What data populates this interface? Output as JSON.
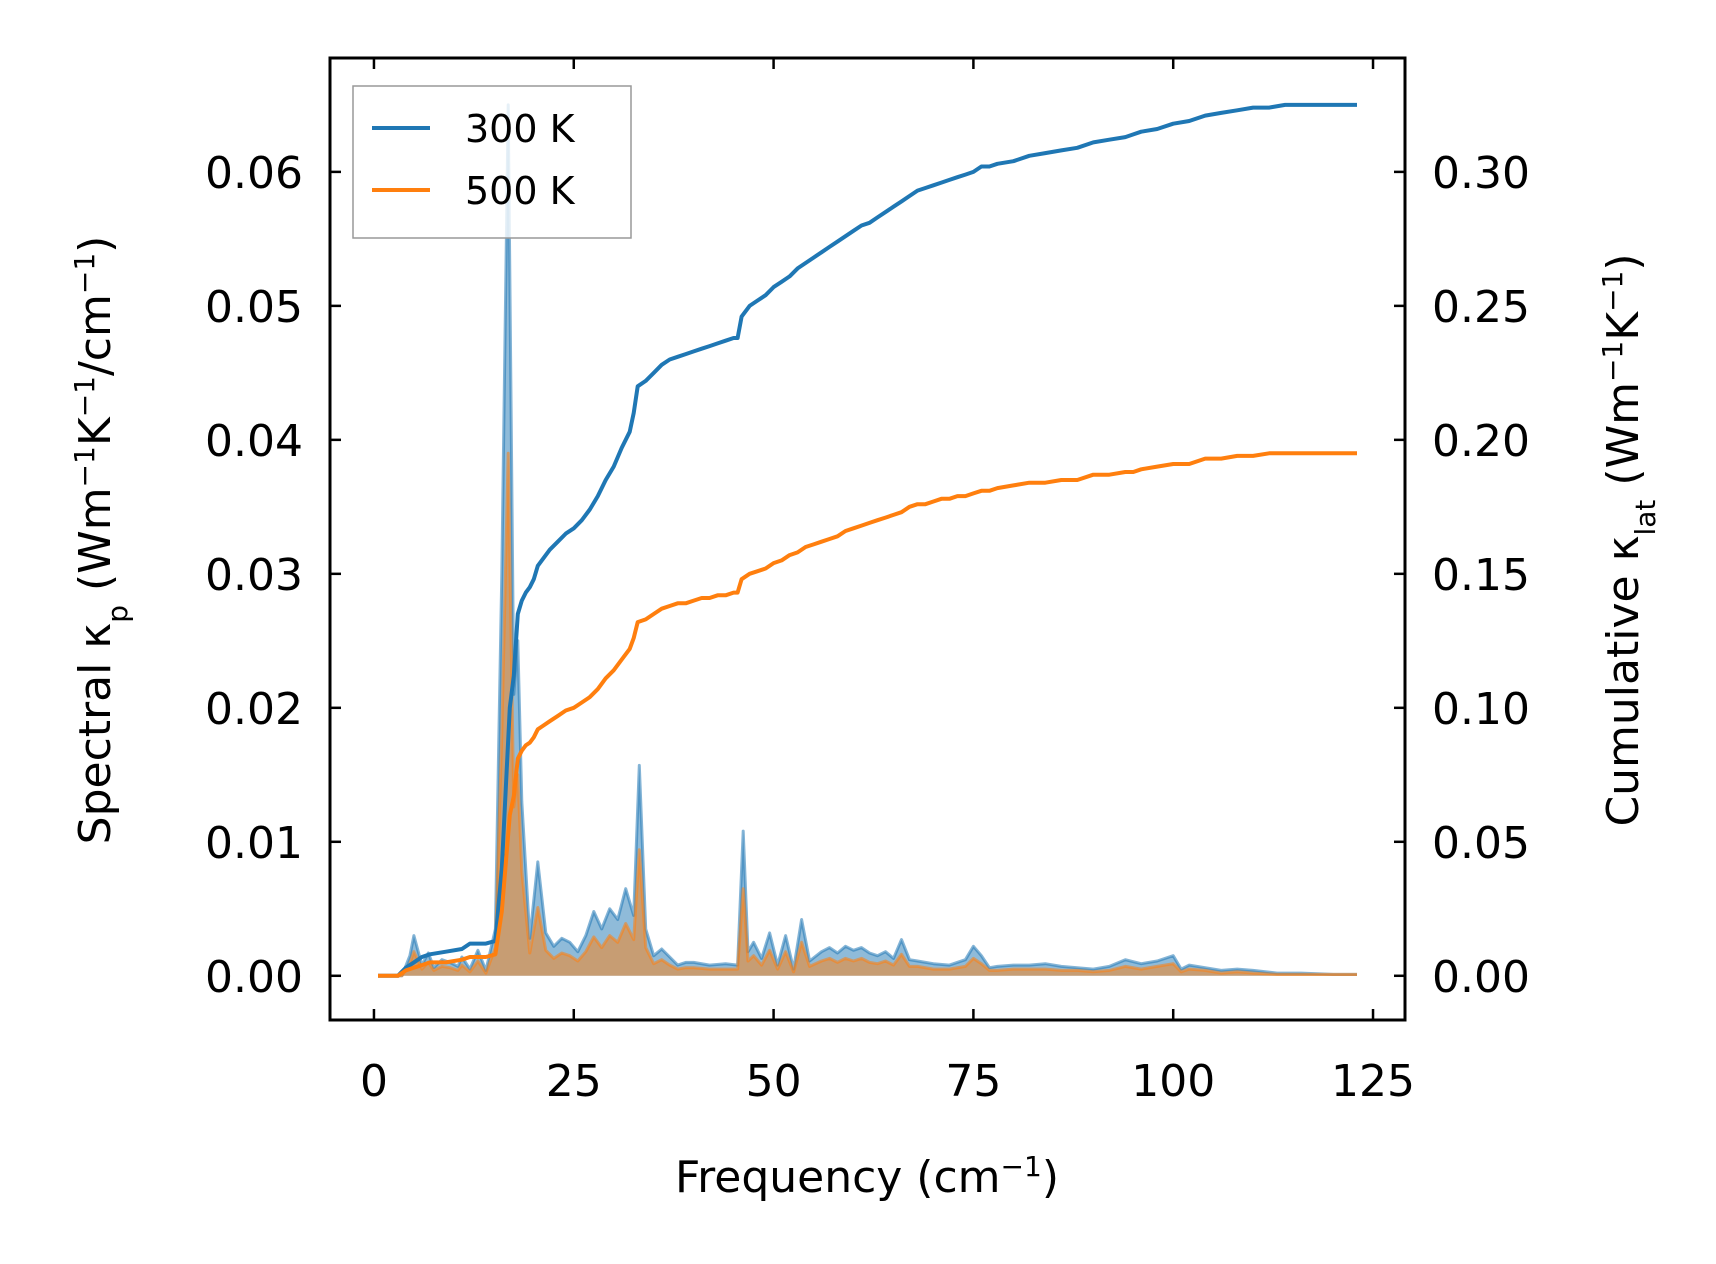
{
  "chart_data": {
    "type": "line",
    "title": "",
    "xlabel": "Frequency (cm",
    "xlabel_sup": "−1",
    "xlabel_end": ")",
    "ylabel_left": {
      "prefix": "Spectral κ",
      "sub": "p",
      "mid1": " (Wm",
      "sup1": "−1",
      "mid2": "K",
      "sup2": "−1",
      "mid3": "/cm",
      "sup3": "−1",
      "end": ")"
    },
    "ylabel_right": {
      "prefix": "Cumulative κ",
      "sub": "lat",
      "mid1": " (Wm",
      "sup1": "−1",
      "mid2": "K",
      "sup2": "−1",
      "end": ")"
    },
    "xlim": [
      -5.5,
      129
    ],
    "xticks": [
      0,
      25,
      50,
      75,
      100,
      125
    ],
    "xtick_labels": [
      "0",
      "25",
      "50",
      "75",
      "100",
      "125"
    ],
    "ylim_left": [
      -0.0033,
      0.0685
    ],
    "yticks_left": [
      0.0,
      0.01,
      0.02,
      0.03,
      0.04,
      0.05,
      0.06
    ],
    "ytick_labels_left": [
      "0.00",
      "0.01",
      "0.02",
      "0.03",
      "0.04",
      "0.05",
      "0.06"
    ],
    "ylim_right": [
      -0.0165,
      0.3425
    ],
    "yticks_right": [
      0.0,
      0.05,
      0.1,
      0.15,
      0.2,
      0.25,
      0.3
    ],
    "ytick_labels_right": [
      "0.00",
      "0.05",
      "0.10",
      "0.15",
      "0.20",
      "0.25",
      "0.30"
    ],
    "legend": {
      "position": "upper-left",
      "entries": [
        {
          "name": "300 K",
          "color": "#1f77b4"
        },
        {
          "name": "500 K",
          "color": "#ff7f0e"
        }
      ]
    },
    "spectral_series": [
      {
        "name": "300 K",
        "color": "#1f77b4",
        "axis": "left",
        "x": [
          0.5,
          2.5,
          3.5,
          4.5,
          5,
          6,
          6.8,
          7.5,
          8.5,
          9.5,
          10.5,
          11,
          12,
          13,
          14,
          15.2,
          16,
          16.8,
          17.5,
          18,
          18.5,
          19.5,
          20.5,
          21.5,
          22.5,
          23.5,
          24.5,
          25.5,
          26.5,
          27.5,
          28.5,
          29.5,
          30.5,
          31.5,
          32.5,
          33.2,
          34,
          35,
          36,
          37,
          38,
          39,
          40,
          42,
          44,
          45.5,
          46.2,
          46.8,
          47.5,
          48.5,
          49.5,
          50.5,
          51.5,
          52.5,
          53.5,
          54.5,
          56,
          57,
          58,
          59,
          60,
          61,
          62,
          63,
          64,
          65,
          66,
          67,
          68,
          70,
          72,
          74,
          75,
          76,
          77,
          78,
          80,
          82,
          84,
          86,
          88,
          90,
          92,
          94,
          96,
          98,
          100,
          101,
          102,
          104,
          106,
          108,
          110,
          113,
          116,
          120,
          123
        ],
        "y": [
          0.0,
          0.0,
          0.0,
          0.0015,
          0.003,
          0.0008,
          0.0017,
          0.0006,
          0.0012,
          0.001,
          0.0007,
          0.0014,
          0.0005,
          0.0019,
          0.0004,
          0.0035,
          0.03,
          0.065,
          0.021,
          0.025,
          0.013,
          0.0028,
          0.0085,
          0.0032,
          0.0022,
          0.0028,
          0.0025,
          0.0018,
          0.003,
          0.0048,
          0.0035,
          0.005,
          0.0042,
          0.0065,
          0.0045,
          0.0157,
          0.0035,
          0.0015,
          0.002,
          0.0014,
          0.0008,
          0.001,
          0.001,
          0.0008,
          0.0009,
          0.0008,
          0.0108,
          0.0018,
          0.0025,
          0.0013,
          0.0032,
          0.0008,
          0.003,
          0.0005,
          0.0042,
          0.0011,
          0.0018,
          0.0021,
          0.0017,
          0.0022,
          0.0019,
          0.0021,
          0.0017,
          0.0015,
          0.0018,
          0.0013,
          0.0027,
          0.0012,
          0.0011,
          0.0009,
          0.0008,
          0.0012,
          0.0022,
          0.0015,
          0.0006,
          0.0007,
          0.0008,
          0.0008,
          0.0009,
          0.0007,
          0.0006,
          0.0005,
          0.0007,
          0.0012,
          0.0009,
          0.0011,
          0.0015,
          0.0005,
          0.0008,
          0.0006,
          0.0004,
          0.0005,
          0.0004,
          0.0002,
          0.0002,
          0.0001,
          0.0001
        ]
      },
      {
        "name": "500 K",
        "color": "#ff7f0e",
        "axis": "left",
        "x": [
          0.5,
          2.5,
          3.5,
          4.5,
          5,
          6,
          6.8,
          7.5,
          8.5,
          9.5,
          10.5,
          11,
          12,
          13,
          14,
          15.2,
          16,
          16.8,
          17.5,
          18,
          18.5,
          19.5,
          20.5,
          21.5,
          22.5,
          23.5,
          24.5,
          25.5,
          26.5,
          27.5,
          28.5,
          29.5,
          30.5,
          31.5,
          32.5,
          33.2,
          34,
          35,
          36,
          37,
          38,
          39,
          40,
          42,
          44,
          45.5,
          46.2,
          46.8,
          47.5,
          48.5,
          49.5,
          50.5,
          51.5,
          52.5,
          53.5,
          54.5,
          56,
          57,
          58,
          59,
          60,
          61,
          62,
          63,
          64,
          65,
          66,
          67,
          68,
          70,
          72,
          74,
          75,
          76,
          77,
          78,
          80,
          82,
          84,
          86,
          88,
          90,
          92,
          94,
          96,
          98,
          100,
          101,
          102,
          104,
          106,
          108,
          110,
          113,
          116,
          120,
          123
        ],
        "y": [
          0.0,
          0.0,
          0.0,
          0.0009,
          0.0018,
          0.0005,
          0.001,
          0.0004,
          0.0007,
          0.0006,
          0.0004,
          0.0008,
          0.0003,
          0.0011,
          0.0002,
          0.0021,
          0.018,
          0.039,
          0.0126,
          0.015,
          0.0078,
          0.0017,
          0.0051,
          0.0019,
          0.0013,
          0.0017,
          0.0015,
          0.0011,
          0.0018,
          0.0029,
          0.0021,
          0.003,
          0.0025,
          0.0039,
          0.0027,
          0.0094,
          0.0021,
          0.0009,
          0.0012,
          0.0008,
          0.0005,
          0.0006,
          0.0006,
          0.0005,
          0.0005,
          0.0005,
          0.0065,
          0.0011,
          0.0015,
          0.0008,
          0.0019,
          0.0005,
          0.0018,
          0.0003,
          0.0025,
          0.0007,
          0.0011,
          0.0013,
          0.001,
          0.0013,
          0.0011,
          0.0013,
          0.001,
          0.0009,
          0.0011,
          0.0008,
          0.0016,
          0.0007,
          0.0007,
          0.0005,
          0.0005,
          0.0007,
          0.0013,
          0.0009,
          0.0004,
          0.0004,
          0.0005,
          0.0005,
          0.0005,
          0.0004,
          0.0004,
          0.0003,
          0.0004,
          0.0007,
          0.0005,
          0.0007,
          0.0009,
          0.0003,
          0.0005,
          0.0004,
          0.0002,
          0.0003,
          0.0002,
          0.0001,
          0.0001,
          0.0001,
          0.0001
        ]
      }
    ],
    "cumulative_series": [
      {
        "name": "300 K",
        "color": "#1f77b4",
        "axis": "right",
        "x": [
          0.5,
          3,
          4,
          5,
          6,
          7,
          9,
          11,
          12,
          14,
          15.2,
          16,
          16.5,
          17,
          17.5,
          18,
          18.5,
          19,
          19.5,
          20,
          20.5,
          21,
          22,
          23,
          24,
          25,
          26,
          27,
          28,
          29,
          30,
          31,
          32,
          32.5,
          33,
          34,
          35,
          36,
          37,
          38,
          39,
          40,
          41,
          42,
          43,
          44,
          45,
          45.5,
          46,
          47,
          48,
          49,
          50,
          51,
          52,
          53,
          54,
          55,
          56,
          57,
          58,
          59,
          60,
          61,
          62,
          63,
          64,
          65,
          66,
          67,
          68,
          69,
          70,
          71,
          72,
          73,
          74,
          75,
          76,
          77,
          78,
          80,
          82,
          84,
          86,
          88,
          90,
          92,
          94,
          95,
          96,
          98,
          100,
          102,
          104,
          106,
          108,
          110,
          112,
          114,
          116,
          120,
          123
        ],
        "y": [
          0.0,
          0.0,
          0.003,
          0.005,
          0.007,
          0.008,
          0.009,
          0.01,
          0.012,
          0.012,
          0.013,
          0.04,
          0.07,
          0.1,
          0.112,
          0.135,
          0.14,
          0.143,
          0.145,
          0.148,
          0.153,
          0.155,
          0.159,
          0.162,
          0.165,
          0.167,
          0.17,
          0.174,
          0.179,
          0.185,
          0.19,
          0.197,
          0.203,
          0.21,
          0.22,
          0.222,
          0.225,
          0.228,
          0.23,
          0.231,
          0.232,
          0.233,
          0.234,
          0.235,
          0.236,
          0.237,
          0.238,
          0.238,
          0.246,
          0.25,
          0.252,
          0.254,
          0.257,
          0.259,
          0.261,
          0.264,
          0.266,
          0.268,
          0.27,
          0.272,
          0.274,
          0.276,
          0.278,
          0.28,
          0.281,
          0.283,
          0.285,
          0.287,
          0.289,
          0.291,
          0.293,
          0.294,
          0.295,
          0.296,
          0.297,
          0.298,
          0.299,
          0.3,
          0.302,
          0.302,
          0.303,
          0.304,
          0.306,
          0.307,
          0.308,
          0.309,
          0.311,
          0.312,
          0.313,
          0.314,
          0.315,
          0.316,
          0.318,
          0.319,
          0.321,
          0.322,
          0.323,
          0.324,
          0.324,
          0.325,
          0.325,
          0.325,
          0.325
        ]
      },
      {
        "name": "500 K",
        "color": "#ff7f0e",
        "axis": "right",
        "x": [
          0.5,
          3,
          4,
          5,
          6,
          7,
          9,
          11,
          12,
          14,
          15.2,
          16,
          16.5,
          17,
          17.5,
          18,
          18.5,
          19,
          19.5,
          20,
          20.5,
          21,
          22,
          23,
          24,
          25,
          26,
          27,
          28,
          29,
          30,
          31,
          32,
          32.5,
          33,
          34,
          35,
          36,
          37,
          38,
          39,
          40,
          41,
          42,
          43,
          44,
          45,
          45.5,
          46,
          47,
          48,
          49,
          50,
          51,
          52,
          53,
          54,
          55,
          56,
          57,
          58,
          59,
          60,
          61,
          62,
          63,
          64,
          65,
          66,
          67,
          68,
          69,
          70,
          71,
          72,
          73,
          74,
          75,
          76,
          77,
          78,
          80,
          82,
          84,
          86,
          88,
          90,
          92,
          94,
          95,
          96,
          98,
          100,
          102,
          104,
          106,
          108,
          110,
          112,
          114,
          116,
          120,
          123
        ],
        "y": [
          0.0,
          0.0,
          0.002,
          0.003,
          0.004,
          0.005,
          0.005,
          0.006,
          0.007,
          0.007,
          0.008,
          0.024,
          0.042,
          0.06,
          0.067,
          0.081,
          0.084,
          0.086,
          0.087,
          0.089,
          0.092,
          0.093,
          0.095,
          0.097,
          0.099,
          0.1,
          0.102,
          0.104,
          0.107,
          0.111,
          0.114,
          0.118,
          0.122,
          0.126,
          0.132,
          0.133,
          0.135,
          0.137,
          0.138,
          0.139,
          0.139,
          0.14,
          0.141,
          0.141,
          0.142,
          0.142,
          0.143,
          0.143,
          0.148,
          0.15,
          0.151,
          0.152,
          0.154,
          0.155,
          0.157,
          0.158,
          0.16,
          0.161,
          0.162,
          0.163,
          0.164,
          0.166,
          0.167,
          0.168,
          0.169,
          0.17,
          0.171,
          0.172,
          0.173,
          0.175,
          0.176,
          0.176,
          0.177,
          0.178,
          0.178,
          0.179,
          0.179,
          0.18,
          0.181,
          0.181,
          0.182,
          0.183,
          0.184,
          0.184,
          0.185,
          0.185,
          0.187,
          0.187,
          0.188,
          0.188,
          0.189,
          0.19,
          0.191,
          0.191,
          0.193,
          0.193,
          0.194,
          0.194,
          0.195,
          0.195,
          0.195,
          0.195,
          0.195
        ]
      }
    ]
  }
}
